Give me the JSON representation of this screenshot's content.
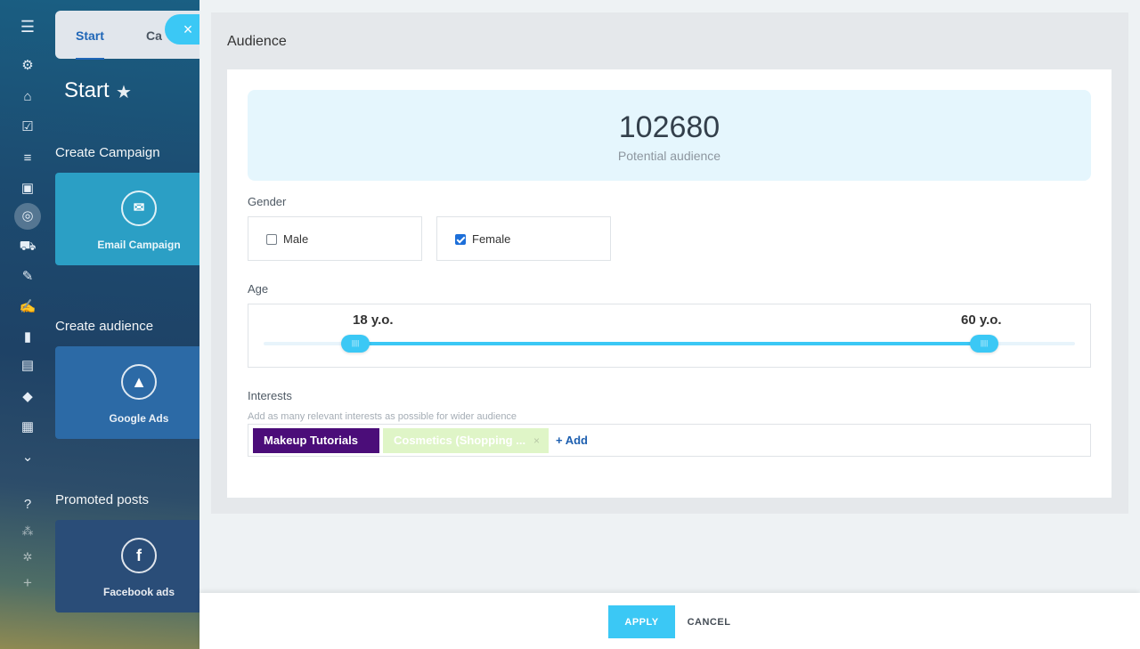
{
  "background_app": {
    "rail_icons": [
      "menu-icon",
      "crm-icon",
      "bot-icon",
      "tasks-icon",
      "filter-icon",
      "bank-icon",
      "target-icon",
      "cart-icon",
      "edit-icon",
      "sign-icon",
      "chart-icon",
      "contact-icon",
      "box-icon",
      "clipboard-icon",
      "more-icon",
      "help-icon",
      "network-icon",
      "settings-icon",
      "plus-icon"
    ],
    "tabs": {
      "start": "Start",
      "campaigns": "Ca"
    },
    "page_title": "Start",
    "sections": {
      "create_campaign": "Create Campaign",
      "create_audience": "Create audience",
      "promoted_posts": "Promoted posts"
    },
    "tiles": {
      "email": "Email Campaign",
      "google": "Google Ads",
      "facebook": "Facebook ads"
    },
    "close_symbol": "×"
  },
  "audience": {
    "title": "Audience",
    "potential": {
      "count": "102680",
      "label": "Potential audience"
    },
    "gender": {
      "label": "Gender",
      "male": {
        "label": "Male",
        "checked": false
      },
      "female": {
        "label": "Female",
        "checked": true
      }
    },
    "age": {
      "label": "Age",
      "min_label": "18 y.o.",
      "max_label": "60 y.o.",
      "min": 18,
      "max": 60
    },
    "interests": {
      "label": "Interests",
      "hint": "Add as many relevant interests as possible for wider audience",
      "tags": [
        "Makeup Tutorials",
        "Cosmetics (Shopping ..."
      ],
      "remove_symbol": "×",
      "add_label": "+ Add"
    }
  },
  "footer": {
    "apply": "APPLY",
    "cancel": "CANCEL"
  },
  "colors": {
    "accent": "#3bc8f5",
    "tag_makeup": "#4b0d79",
    "tag_cosmetics": "#dff5c7",
    "link": "#1d5fb0"
  }
}
